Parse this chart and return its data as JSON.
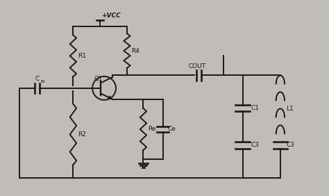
{
  "bg_color": "#c0bdb8",
  "line_color": "#1a1a1a",
  "label_color": "#1a1a1a",
  "components": {
    "VCC_label": "+VCC",
    "CIN_label": "CIN",
    "COUT_label": "COUT",
    "R1_label": "R1",
    "R2_label": "R2",
    "R4_label": "R4",
    "Re_label": "Re",
    "Ce_label": "Ce",
    "C1_label": "C1",
    "C3a_label": "C3",
    "C3b_label": "C3",
    "L1_label": "L1",
    "Q1_label": "Q1"
  },
  "xlim": [
    0,
    10
  ],
  "ylim": [
    0,
    6
  ],
  "figsize": [
    4.74,
    2.82
  ],
  "dpi": 100
}
